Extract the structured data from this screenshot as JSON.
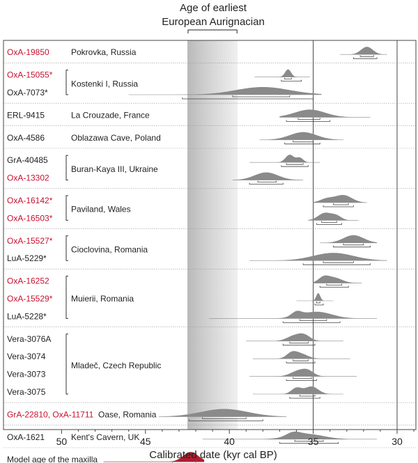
{
  "chart_data": {
    "type": "density-ridgeline",
    "header": {
      "line1": "Age of earliest",
      "line2": "European Aurignacian"
    },
    "xlabel": "Calibrated date (kyr cal BP)",
    "x_ticks": [
      "50",
      "45",
      "40",
      "35",
      "30"
    ],
    "x_tick_values": [
      50,
      45,
      40,
      35,
      30
    ],
    "xlim": [
      53.5,
      28.7
    ],
    "reversed_x": true,
    "aurignacian_band": [
      42.5,
      39.5
    ],
    "vertical_rules": [
      35,
      30
    ],
    "colors": {
      "red": "#c8102e",
      "gray": "#8a8a8a",
      "dark": "#222222",
      "maxilla": "#b01c2e",
      "band": "#cfcfcf"
    },
    "groups": [
      {
        "site": "Pokrovka, Russia",
        "samples": [
          {
            "label": "OxA-19850",
            "red": true,
            "peaks": [
              [
                31.8,
                0.35,
                1
              ]
            ],
            "range68": [
              32.2,
              31.4
            ],
            "range95": [
              32.6,
              31.2
            ],
            "tails": [
              33.4,
              30.6
            ]
          }
        ]
      },
      {
        "site": "Kostenki I, Russia",
        "samples": [
          {
            "label": "OxA-15055*",
            "red": true,
            "peaks": [
              [
                36.5,
                0.18,
                1
              ]
            ],
            "range68": [
              36.7,
              36.3
            ],
            "range95": [
              36.9,
              35.7
            ],
            "tails": [
              38.5,
              35.2
            ]
          },
          {
            "label": "OxA-7073*",
            "red": false,
            "peaks": [
              [
                38.0,
                1.6,
                1
              ]
            ],
            "range68": [
              39.8,
              36.4
            ],
            "range95": [
              42.8,
              35.0
            ],
            "tails": [
              46.0,
              34.5
            ]
          }
        ]
      },
      {
        "site": "La Crouzade, France",
        "samples": [
          {
            "label": "ERL-9415",
            "red": false,
            "peaks": [
              [
                35.2,
                0.9,
                1
              ]
            ],
            "range68": [
              35.9,
              34.6
            ],
            "range95": [
              36.6,
              34.0
            ],
            "tails": [
              37.0,
              31.6
            ]
          }
        ]
      },
      {
        "site": "Oblazawa Cave, Poland",
        "samples": [
          {
            "label": "OxA-4586",
            "red": false,
            "peaks": [
              [
                35.6,
                0.8,
                1
              ]
            ],
            "range68": [
              36.2,
              35.0
            ],
            "range95": [
              36.7,
              34.6
            ],
            "tails": [
              38.2,
              33.2
            ]
          }
        ]
      },
      {
        "site": "Buran-Kaya III, Ukraine",
        "samples": [
          {
            "label": "GrA-40485",
            "red": false,
            "peaks": [
              [
                36.4,
                0.25,
                1
              ],
              [
                35.8,
                0.2,
                0.6
              ]
            ],
            "range68": [
              36.6,
              35.6
            ],
            "range95": [
              36.9,
              35.3
            ],
            "tails": [
              38.8,
              34.6
            ]
          },
          {
            "label": "OxA-13302",
            "red": true,
            "peaks": [
              [
                37.8,
                0.7,
                1
              ]
            ],
            "range68": [
              38.3,
              37.2
            ],
            "range95": [
              38.8,
              36.8
            ],
            "tails": [
              39.8,
              35.6
            ]
          }
        ]
      },
      {
        "site": "Paviland, Wales",
        "samples": [
          {
            "label": "OxA-16142*",
            "red": true,
            "peaks": [
              [
                33.2,
                0.5,
                1
              ],
              [
                34.2,
                0.4,
                0.5
              ]
            ],
            "range68": [
              33.8,
              32.9
            ],
            "range95": [
              34.4,
              32.6
            ],
            "tails": [
              35.0,
              31.8
            ]
          },
          {
            "label": "OxA-16503*",
            "red": true,
            "peaks": [
              [
                34.3,
                0.4,
                1
              ],
              [
                33.6,
                0.3,
                0.55
              ]
            ],
            "range68": [
              34.5,
              33.6
            ],
            "range95": [
              34.8,
              33.3
            ],
            "tails": [
              35.3,
              32.3
            ]
          }
        ]
      },
      {
        "site": "Cioclovina, Romania",
        "samples": [
          {
            "label": "OxA-15527*",
            "red": true,
            "peaks": [
              [
                32.6,
                0.6,
                1
              ]
            ],
            "range68": [
              33.2,
              32.0
            ],
            "range95": [
              33.8,
              31.6
            ],
            "tails": [
              34.6,
              31.2
            ]
          },
          {
            "label": "LuA-5229*",
            "red": false,
            "peaks": [
              [
                33.8,
                1.2,
                1
              ]
            ],
            "range68": [
              34.4,
              32.6
            ],
            "range95": [
              35.6,
              31.6
            ],
            "tails": [
              38.8,
              30.6
            ]
          }
        ]
      },
      {
        "site": "Muierii, Romania",
        "samples": [
          {
            "label": "OxA-16252",
            "red": true,
            "peaks": [
              [
                33.8,
                0.5,
                1
              ],
              [
                34.4,
                0.3,
                0.8
              ]
            ],
            "range68": [
              34.2,
              33.3
            ],
            "range95": [
              34.6,
              32.9
            ],
            "tails": [
              35.0,
              32.1
            ]
          },
          {
            "label": "OxA-15529*",
            "red": true,
            "peaks": [
              [
                34.7,
                0.12,
                1
              ]
            ],
            "range68": [
              34.8,
              34.6
            ],
            "range95": [
              34.9,
              34.4
            ],
            "tails": [
              36.0,
              33.8
            ]
          },
          {
            "label": "LuA-5228*",
            "red": false,
            "peaks": [
              [
                34.8,
                0.9,
                1
              ],
              [
                36.0,
                0.3,
                0.7
              ]
            ],
            "range68": [
              35.8,
              34.2
            ],
            "range95": [
              36.8,
              33.4
            ],
            "tails": [
              41.2,
              31.2
            ]
          }
        ]
      },
      {
        "site": "Mladeč, Czech Republic",
        "samples": [
          {
            "label": "Vera-3076A",
            "red": false,
            "peaks": [
              [
                36.1,
                0.45,
                1
              ],
              [
                35.5,
                0.35,
                0.9
              ]
            ],
            "range68": [
              36.4,
              35.3
            ],
            "range95": [
              36.8,
              34.9
            ],
            "tails": [
              39.0,
              33.2
            ]
          },
          {
            "label": "Vera-3074",
            "red": false,
            "peaks": [
              [
                35.8,
                0.45,
                1
              ],
              [
                36.3,
                0.3,
                0.85
              ]
            ],
            "range68": [
              36.2,
              35.3
            ],
            "range95": [
              36.6,
              34.9
            ],
            "tails": [
              38.6,
              32.8
            ]
          },
          {
            "label": "Vera-3073",
            "red": false,
            "peaks": [
              [
                35.9,
                0.45,
                1
              ],
              [
                35.3,
                0.35,
                0.9
              ]
            ],
            "range68": [
              36.2,
              35.1
            ],
            "range95": [
              36.6,
              34.8
            ],
            "tails": [
              38.8,
              32.4
            ]
          },
          {
            "label": "Vera-3075",
            "red": false,
            "peaks": [
              [
                35.1,
                0.4,
                1
              ],
              [
                36.0,
                0.3,
                0.8
              ]
            ],
            "range68": [
              35.8,
              34.9
            ],
            "range95": [
              36.4,
              34.6
            ],
            "tails": [
              38.6,
              33.2
            ]
          }
        ]
      },
      {
        "site": "Oase, Romania",
        "samples": [
          {
            "label": "GrA-22810, OxA-11711",
            "red": true,
            "peaks": [
              [
                40.3,
                1.4,
                1
              ]
            ],
            "range68": [
              41.6,
              39.0
            ],
            "range95": [
              42.4,
              38.0
            ],
            "tails": [
              44.2,
              36.6
            ]
          }
        ]
      },
      {
        "site": "Kent's Cavern, UK",
        "samples": [
          {
            "label": "OxA-1621",
            "red": false,
            "peaks": [
              [
                35.4,
                1.0,
                1
              ],
              [
                36.2,
                0.4,
                0.7
              ]
            ],
            "range68": [
              36.1,
              34.4
            ],
            "range95": [
              37.0,
              33.5
            ],
            "tails": [
              41.6,
              31.2
            ]
          }
        ]
      },
      {
        "site": "",
        "samples": [
          {
            "label": "Model age of the maxilla",
            "red": false,
            "maxilla": true,
            "peaks": [
              [
                42.3,
                0.45,
                1
              ]
            ],
            "range68": [
              43.4,
              42.0
            ],
            "range95": [
              44.3,
              41.5
            ],
            "tails": [
              47.5,
              41.5
            ]
          }
        ]
      }
    ]
  }
}
